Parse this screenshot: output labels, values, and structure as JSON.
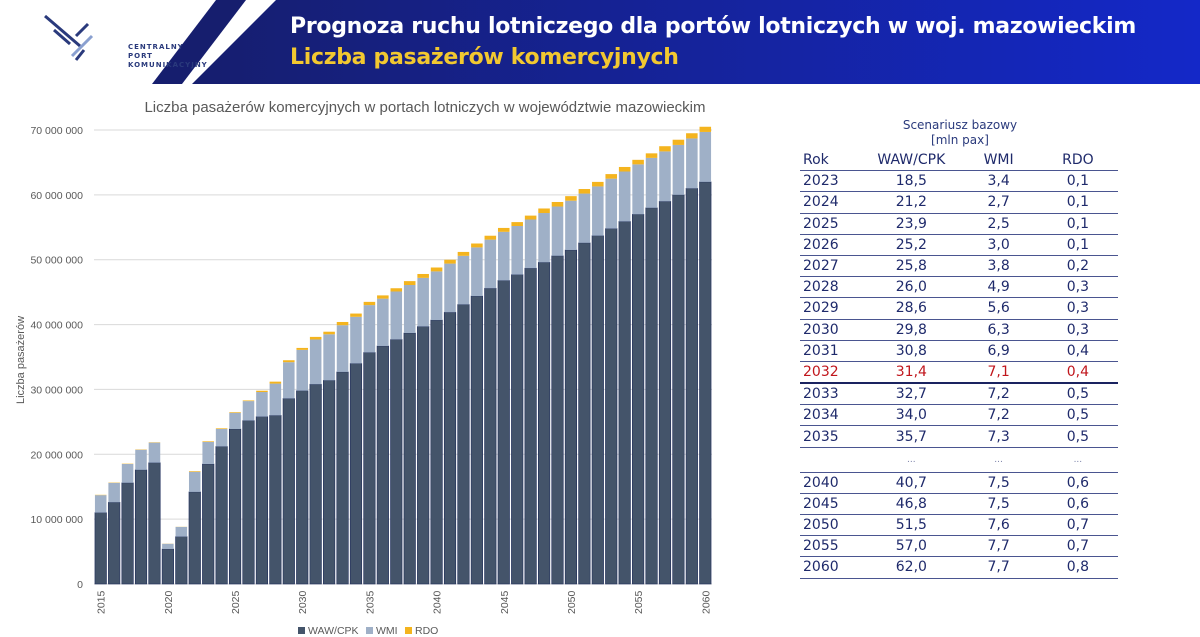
{
  "header": {
    "logo_line1": "CENTRALNY PORT",
    "logo_line2": "KOMUNIKACYJNY",
    "title": "Prognoza ruchu lotniczego dla portów lotniczych w woj. mazowieckim",
    "subtitle": "Liczba pasażerów komercyjnych"
  },
  "colors": {
    "waw": "#44546a",
    "wmi": "#9fb0c7",
    "rdo": "#f4b41e",
    "banner_dark": "#161e6e",
    "banner_light": "#1428c8",
    "subtitle": "#f2c830",
    "highlight": "#c0161c"
  },
  "chart_data": {
    "type": "bar",
    "stacked": true,
    "title": "Liczba pasażerów komercyjnych w portach lotniczych w województwie mazowieckim",
    "xlabel": "",
    "ylabel": "Liczba pasażerów",
    "ylim": [
      0,
      70000000
    ],
    "yticks": [
      0,
      10000000,
      20000000,
      30000000,
      40000000,
      50000000,
      60000000,
      70000000
    ],
    "ytick_labels": [
      "0",
      "10 000 000",
      "20 000 000",
      "30 000 000",
      "40 000 000",
      "50 000 000",
      "60 000 000",
      "70 000 000"
    ],
    "xtick_labels": [
      "2015",
      "2020",
      "2025",
      "2030",
      "2035",
      "2040",
      "2045",
      "2050",
      "2055",
      "2060"
    ],
    "grid": true,
    "legend_position": "bottom",
    "categories": [
      2015,
      2016,
      2017,
      2018,
      2019,
      2020,
      2021,
      2022,
      2023,
      2024,
      2025,
      2026,
      2027,
      2028,
      2029,
      2030,
      2031,
      2032,
      2033,
      2034,
      2035,
      2036,
      2037,
      2038,
      2039,
      2040,
      2041,
      2042,
      2043,
      2044,
      2045,
      2046,
      2047,
      2048,
      2049,
      2050,
      2051,
      2052,
      2053,
      2054,
      2055,
      2056,
      2057,
      2058,
      2059,
      2060
    ],
    "series": [
      {
        "name": "WAW/CPK",
        "values": [
          11000000,
          12600000,
          15600000,
          17600000,
          18700000,
          5400000,
          7300000,
          14200000,
          18500000,
          21200000,
          23900000,
          25200000,
          25800000,
          26000000,
          28600000,
          29800000,
          30800000,
          31400000,
          32700000,
          34000000,
          35700000,
          36700000,
          37700000,
          38700000,
          39700000,
          40700000,
          41900000,
          43100000,
          44400000,
          45600000,
          46800000,
          47700000,
          48700000,
          49600000,
          50600000,
          51500000,
          52600000,
          53700000,
          54800000,
          55900000,
          57000000,
          58000000,
          59000000,
          60000000,
          61000000,
          62000000
        ]
      },
      {
        "name": "WMI",
        "values": [
          2700000,
          3000000,
          2900000,
          3100000,
          3100000,
          800000,
          1500000,
          3100000,
          3400000,
          2700000,
          2500000,
          3000000,
          3800000,
          4900000,
          5600000,
          6300000,
          6900000,
          7100000,
          7200000,
          7200000,
          7300000,
          7300000,
          7400000,
          7400000,
          7500000,
          7500000,
          7500000,
          7500000,
          7500000,
          7500000,
          7500000,
          7500000,
          7500000,
          7600000,
          7600000,
          7600000,
          7600000,
          7600000,
          7700000,
          7700000,
          7700000,
          7700000,
          7700000,
          7700000,
          7700000,
          7700000
        ]
      },
      {
        "name": "RDO",
        "values": [
          50000,
          50000,
          50000,
          50000,
          50000,
          20000,
          20000,
          100000,
          100000,
          100000,
          100000,
          100000,
          200000,
          300000,
          300000,
          300000,
          400000,
          400000,
          500000,
          500000,
          500000,
          500000,
          500000,
          600000,
          600000,
          600000,
          600000,
          600000,
          600000,
          600000,
          600000,
          600000,
          600000,
          700000,
          700000,
          700000,
          700000,
          700000,
          700000,
          700000,
          700000,
          700000,
          800000,
          800000,
          800000,
          800000
        ]
      }
    ]
  },
  "table": {
    "title": "Scenariusz bazowy",
    "unit": "[mln pax]",
    "columns": [
      "Rok",
      "WAW/CPK",
      "WMI",
      "RDO"
    ],
    "rows": [
      {
        "year": "2023",
        "waw": "18,5",
        "wmi": "3,4",
        "rdo": "0,1"
      },
      {
        "year": "2024",
        "waw": "21,2",
        "wmi": "2,7",
        "rdo": "0,1"
      },
      {
        "year": "2025",
        "waw": "23,9",
        "wmi": "2,5",
        "rdo": "0,1"
      },
      {
        "year": "2026",
        "waw": "25,2",
        "wmi": "3,0",
        "rdo": "0,1"
      },
      {
        "year": "2027",
        "waw": "25,8",
        "wmi": "3,8",
        "rdo": "0,2"
      },
      {
        "year": "2028",
        "waw": "26,0",
        "wmi": "4,9",
        "rdo": "0,3"
      },
      {
        "year": "2029",
        "waw": "28,6",
        "wmi": "5,6",
        "rdo": "0,3"
      },
      {
        "year": "2030",
        "waw": "29,8",
        "wmi": "6,3",
        "rdo": "0,3"
      },
      {
        "year": "2031",
        "waw": "30,8",
        "wmi": "6,9",
        "rdo": "0,4"
      },
      {
        "year": "2032",
        "waw": "31,4",
        "wmi": "7,1",
        "rdo": "0,4",
        "highlight": true
      },
      {
        "year": "2033",
        "waw": "32,7",
        "wmi": "7,2",
        "rdo": "0,5"
      },
      {
        "year": "2034",
        "waw": "34,0",
        "wmi": "7,2",
        "rdo": "0,5"
      },
      {
        "year": "2035",
        "waw": "35,7",
        "wmi": "7,3",
        "rdo": "0,5"
      },
      {
        "year": "",
        "waw": "...",
        "wmi": "...",
        "rdo": "...",
        "gap": true
      },
      {
        "year": "2040",
        "waw": "40,7",
        "wmi": "7,5",
        "rdo": "0,6"
      },
      {
        "year": "2045",
        "waw": "46,8",
        "wmi": "7,5",
        "rdo": "0,6"
      },
      {
        "year": "2050",
        "waw": "51,5",
        "wmi": "7,6",
        "rdo": "0,7"
      },
      {
        "year": "2055",
        "waw": "57,0",
        "wmi": "7,7",
        "rdo": "0,7"
      },
      {
        "year": "2060",
        "waw": "62,0",
        "wmi": "7,7",
        "rdo": "0,8"
      }
    ]
  }
}
